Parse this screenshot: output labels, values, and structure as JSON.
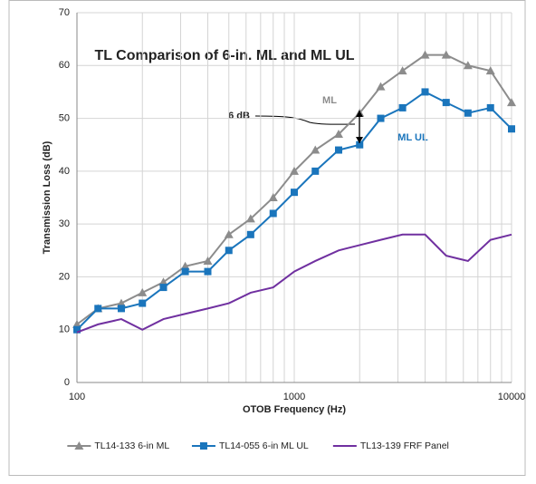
{
  "chart_data": {
    "type": "line",
    "title": "TL Comparison of 6-in. ML and ML UL",
    "x_label": "OTOB Frequency (Hz)",
    "y_label": "Transmission Loss (dB)",
    "x": [
      100,
      125,
      160,
      200,
      250,
      315,
      400,
      500,
      630,
      800,
      1000,
      1250,
      1600,
      2000,
      2500,
      3150,
      4000,
      5000,
      6300,
      8000,
      10000
    ],
    "series": [
      {
        "name": "TL14-133 6-in ML",
        "color": "#8c8c8c",
        "marker": "triangle",
        "values": [
          11,
          14,
          15,
          17,
          19,
          22,
          23,
          28,
          31,
          35,
          40,
          44,
          47,
          51,
          56,
          59,
          62,
          62,
          60,
          59,
          53
        ]
      },
      {
        "name": "TL14-055 6-in ML UL",
        "color": "#1a75bc",
        "marker": "square",
        "values": [
          10,
          14,
          14,
          15,
          18,
          21,
          21,
          25,
          28,
          32,
          36,
          40,
          44,
          45,
          50,
          52,
          55,
          53,
          51,
          52,
          48
        ]
      },
      {
        "name": "TL13-139 FRF Panel",
        "color": "#7030a0",
        "marker": "none",
        "values": [
          9.5,
          11,
          12,
          10,
          12,
          13,
          14,
          15,
          17,
          18,
          21,
          23,
          25,
          26,
          27,
          28,
          28,
          24,
          23,
          27,
          28
        ]
      }
    ],
    "annotations": [
      "ML",
      "ML UL",
      "6 dB"
    ],
    "x_log": true,
    "xlim": [
      100,
      10000
    ],
    "xticks": [
      100,
      1000,
      10000
    ],
    "ylim": [
      0,
      70
    ],
    "yticks": [
      0,
      10,
      20,
      30,
      40,
      50,
      60,
      70
    ],
    "grid": true,
    "legend": "bottom"
  }
}
